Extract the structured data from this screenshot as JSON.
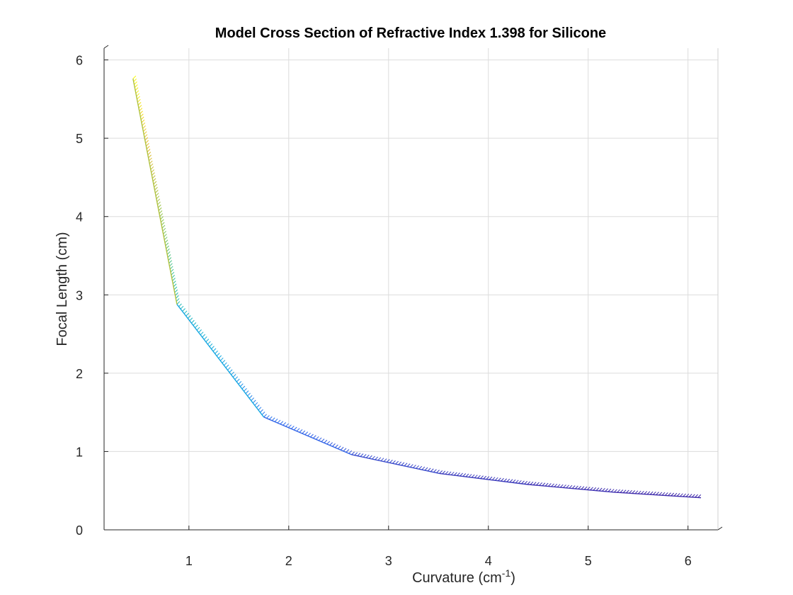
{
  "chart_data": {
    "type": "line",
    "title": "Model Cross Section of Refractive Index 1.398 for Silicone",
    "xlabel": "Curvature (cm",
    "xlabel_superscript": "-1",
    "xlabel_suffix": ")",
    "ylabel": "Focal Length (cm)",
    "xlim": [
      0.15,
      6.3
    ],
    "ylim": [
      0,
      6.15
    ],
    "xticks": [
      1,
      2,
      3,
      4,
      5,
      6
    ],
    "yticks": [
      0,
      1,
      2,
      3,
      4,
      5,
      6
    ],
    "grid": true,
    "colormap": [
      "#3e26a8",
      "#2f6cf0",
      "#16aae2",
      "#25c0a8",
      "#8fc74d",
      "#e6bb2f",
      "#f9fb0e"
    ],
    "series": [
      {
        "x": [
          0.44,
          0.88,
          1.75,
          2.63,
          3.51,
          4.39,
          5.26,
          6.13
        ],
        "y": [
          5.76,
          2.88,
          1.44,
          0.96,
          0.72,
          0.58,
          0.48,
          0.41
        ]
      }
    ]
  }
}
